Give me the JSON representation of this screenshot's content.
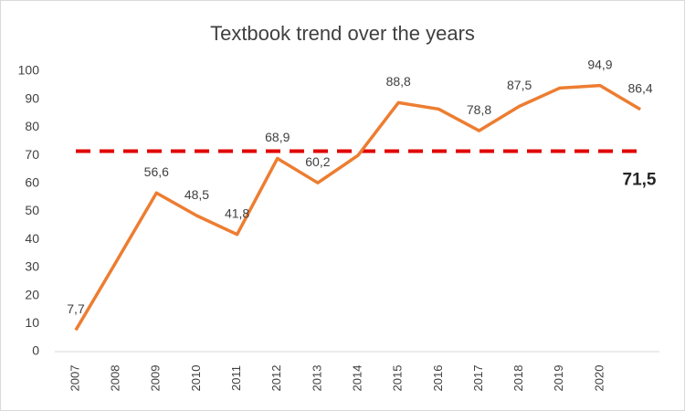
{
  "chart_data": {
    "type": "line",
    "title": "Textbook trend over the years",
    "categories": [
      "2007",
      "2008",
      "2009",
      "2010",
      "2011",
      "2012",
      "2013",
      "2014",
      "2015",
      "2016",
      "2017",
      "2018",
      "2019",
      "2020",
      null
    ],
    "values": [
      7.7,
      32,
      56.6,
      48.5,
      41.8,
      68.9,
      60.2,
      70,
      88.8,
      86.5,
      78.8,
      87.5,
      94,
      94.9,
      86.4
    ],
    "value_labels": [
      "7,7",
      null,
      "56,6",
      "48,5",
      "41,8",
      "68,9",
      "60,2",
      null,
      "88,8",
      null,
      "78,8",
      "87,5",
      null,
      "94,9",
      "86,4"
    ],
    "color": "#ed7d31",
    "ylim": [
      0,
      100
    ],
    "yticks": [
      0,
      10,
      20,
      30,
      40,
      50,
      60,
      70,
      80,
      90,
      100
    ],
    "grid": false,
    "reference": {
      "value": 71.5,
      "label": "71,5",
      "color": "#e00000",
      "style": "dashed"
    }
  }
}
